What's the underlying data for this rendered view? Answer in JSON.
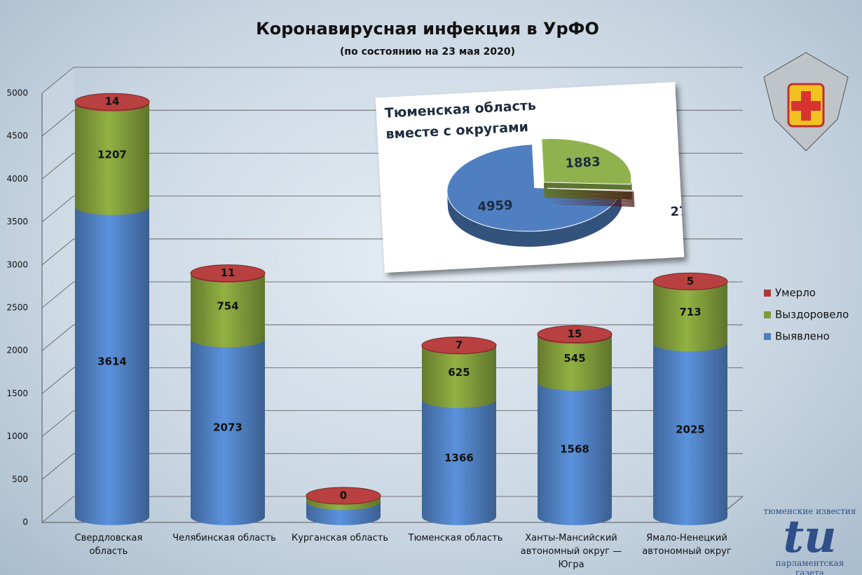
{
  "chart_data": [
    {
      "type": "bar",
      "title": "Коронавирусная инфекция в УрФО",
      "subtitle": "(по состоянию на 23 мая 2020)",
      "categories": [
        "Свердловская область",
        "Челябинская область",
        "Курганская область",
        "Тюменская область",
        "Ханты-Мансийский автономный округ — Югра",
        "Ямало-Ненецкий автономный округ"
      ],
      "series": [
        {
          "name": "Выявлено",
          "color": "#4f7fc0",
          "values": [
            3614,
            2073,
            177,
            1366,
            1568,
            2025
          ]
        },
        {
          "name": "Выздоровело",
          "color": "#7f9a3a",
          "values": [
            1207,
            754,
            68,
            625,
            545,
            713
          ]
        },
        {
          "name": "Умерло",
          "color": "#a83a3a",
          "values": [
            14,
            11,
            0,
            7,
            15,
            5
          ]
        }
      ],
      "ylim": [
        0,
        5000
      ],
      "yticks": [
        0,
        500,
        1000,
        1500,
        2000,
        2500,
        3000,
        3500,
        4000,
        4500,
        5000
      ],
      "grid": true,
      "legend": "right"
    },
    {
      "type": "pie",
      "title": "Тюменская область вместе с округами",
      "values": [
        4959,
        1883,
        27
      ],
      "colors": [
        "#4f7fc0",
        "#8fb24f",
        "#7a2a24"
      ]
    }
  ],
  "branding": {
    "top": "тюменские известия",
    "logo": "tu",
    "bottom": "парламентская газета"
  }
}
